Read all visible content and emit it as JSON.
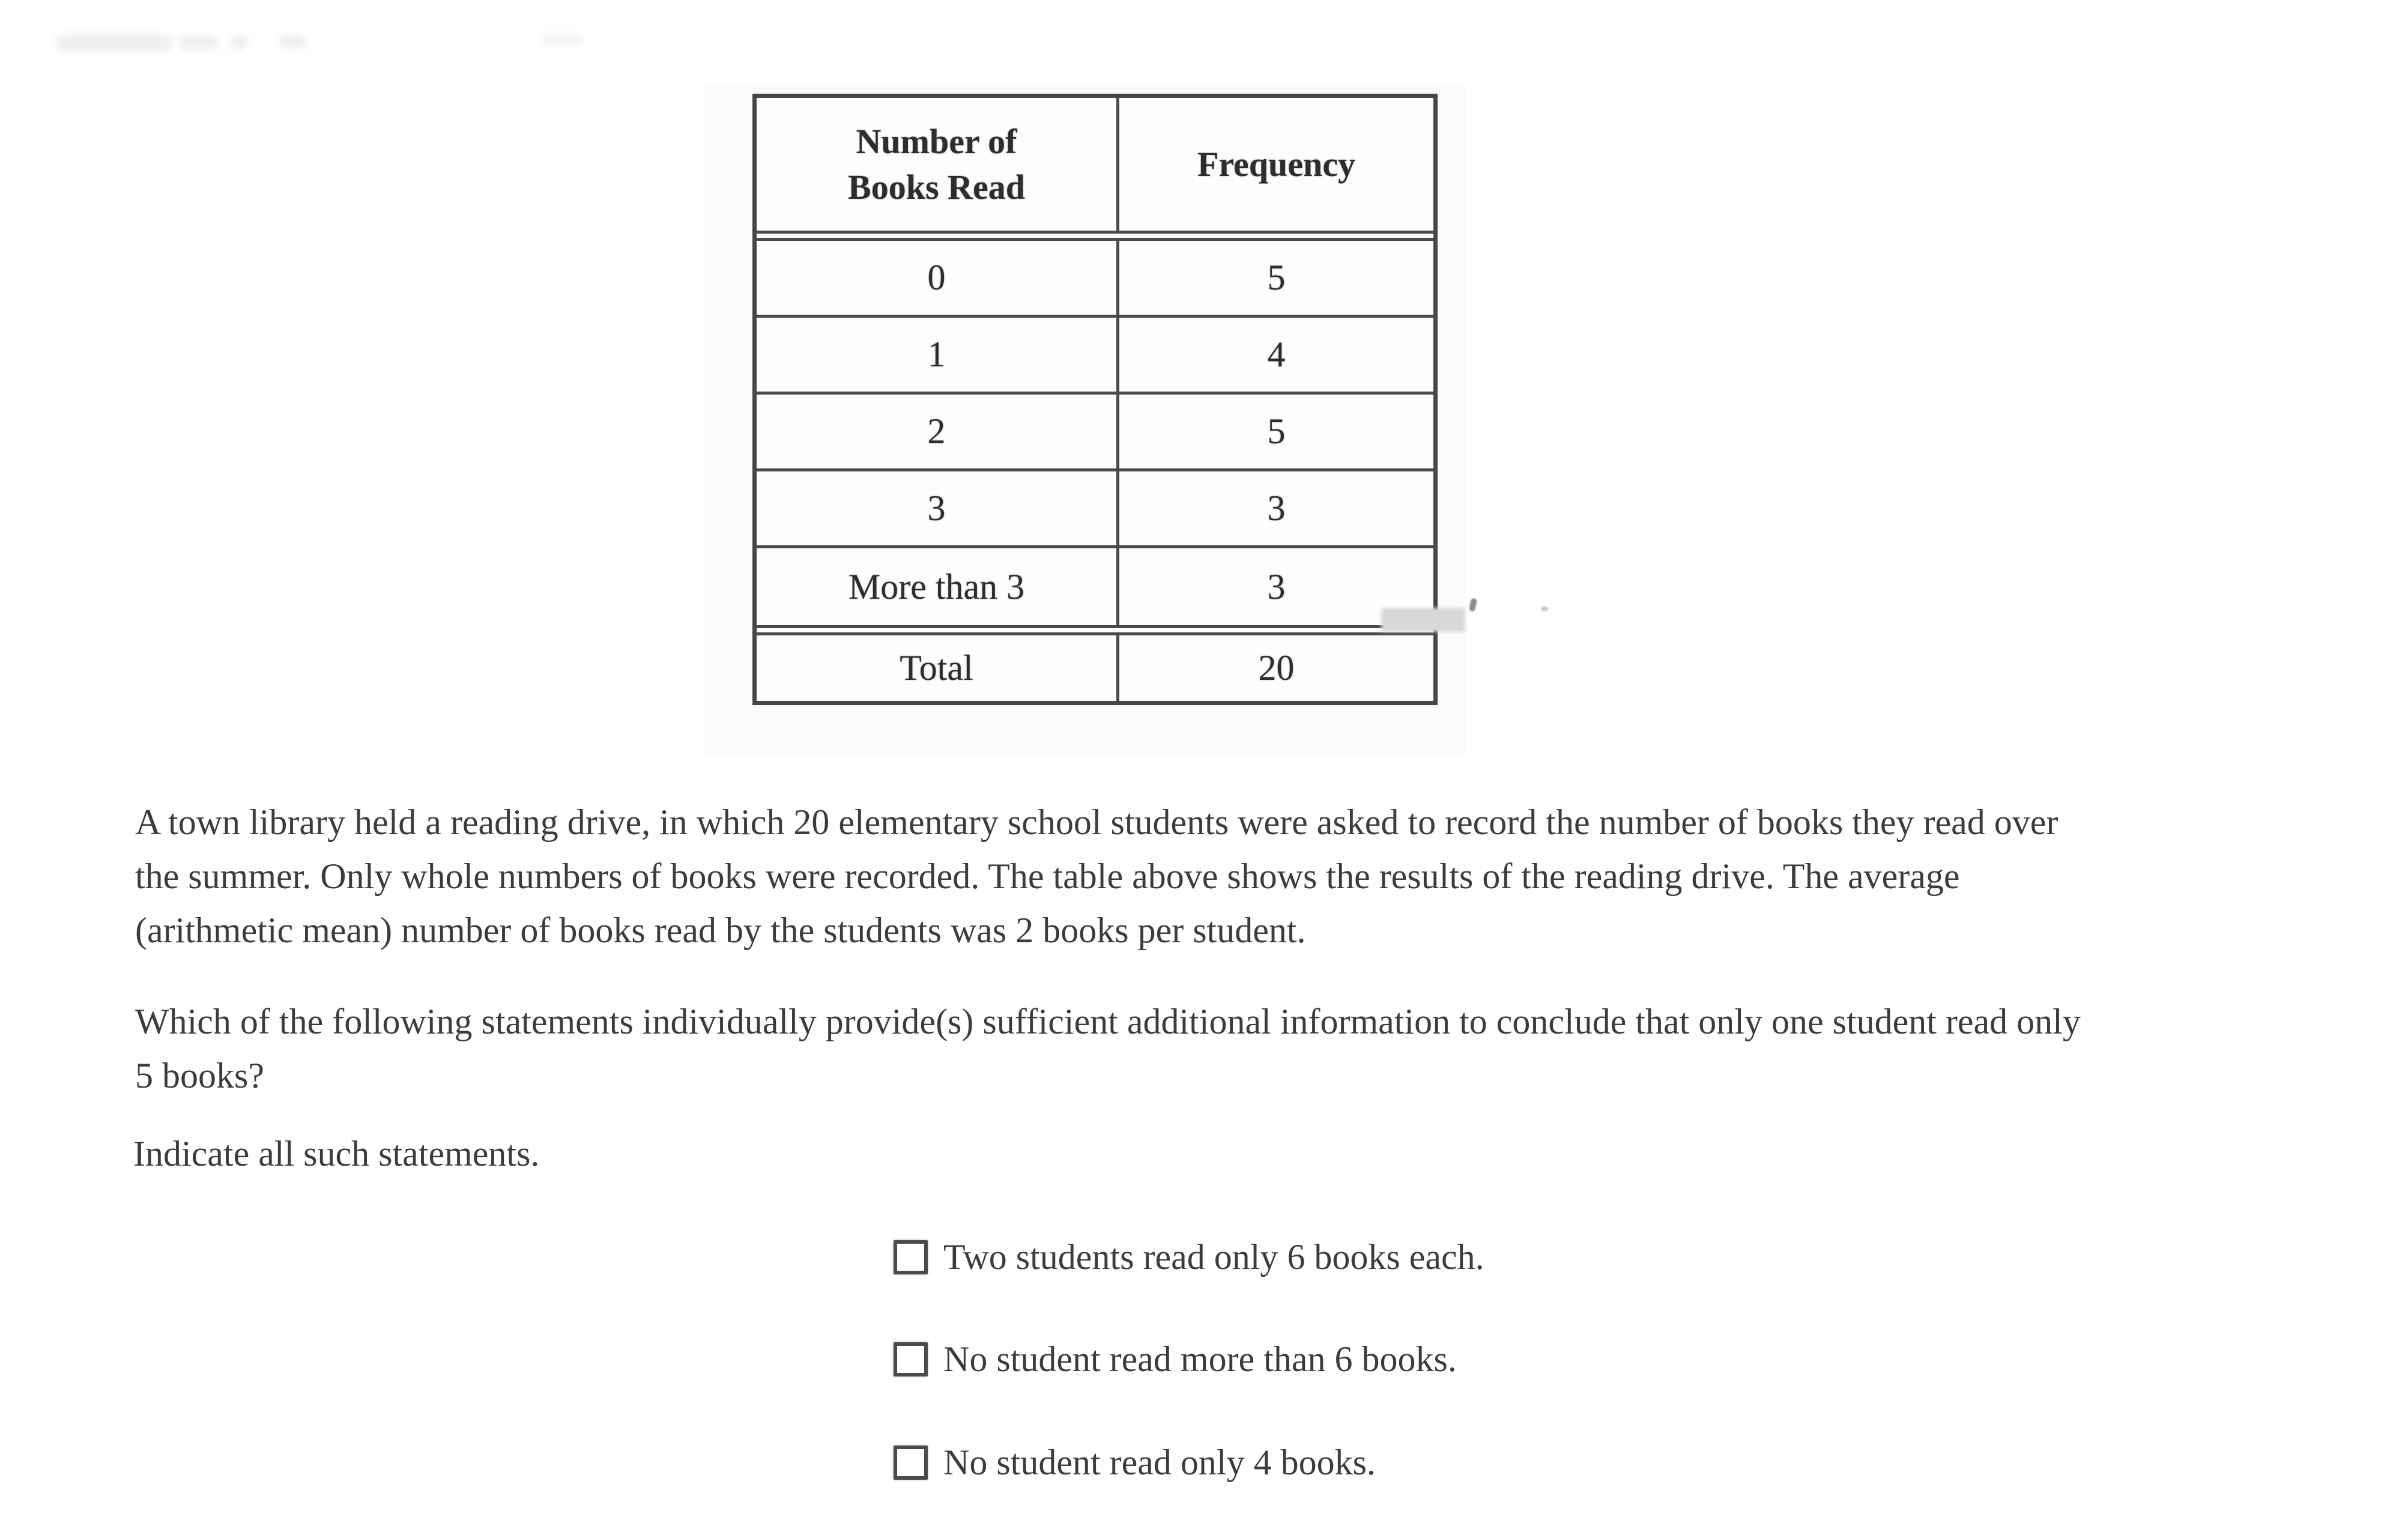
{
  "page": {
    "background_color": "#ffffff",
    "text_color": "#3c3c3c",
    "table_border_color": "#4a4a4a"
  },
  "table": {
    "col1_header": "Number of\nBooks Read",
    "col2_header": "Frequency",
    "rows": [
      {
        "label": "0",
        "frequency": "5"
      },
      {
        "label": "1",
        "frequency": "4"
      },
      {
        "label": "2",
        "frequency": "5"
      },
      {
        "label": "3",
        "frequency": "3"
      },
      {
        "label": "More than 3",
        "frequency": "3"
      }
    ],
    "total_label": "Total",
    "total_value": "20"
  },
  "question": {
    "paragraph1_lines": [
      "A town library held a reading drive, in which 20 elementary school students were asked to record the number of books they read over",
      "the summer. Only whole numbers of books were recorded. The table above shows the results of the reading drive. The average",
      "(arithmetic mean) number of books read by the students was 2 books per student."
    ],
    "paragraph2_lines": [
      "Which of the following statements individually provide(s) sufficient additional information to conclude that only one student read only",
      "5 books?"
    ],
    "instruction": "Indicate all such statements."
  },
  "choices": [
    {
      "label": "Two students read only 6 books each.",
      "checked": false
    },
    {
      "label": "No student read more than 6 books.",
      "checked": false
    },
    {
      "label": "No student read only 4 books.",
      "checked": false
    }
  ]
}
